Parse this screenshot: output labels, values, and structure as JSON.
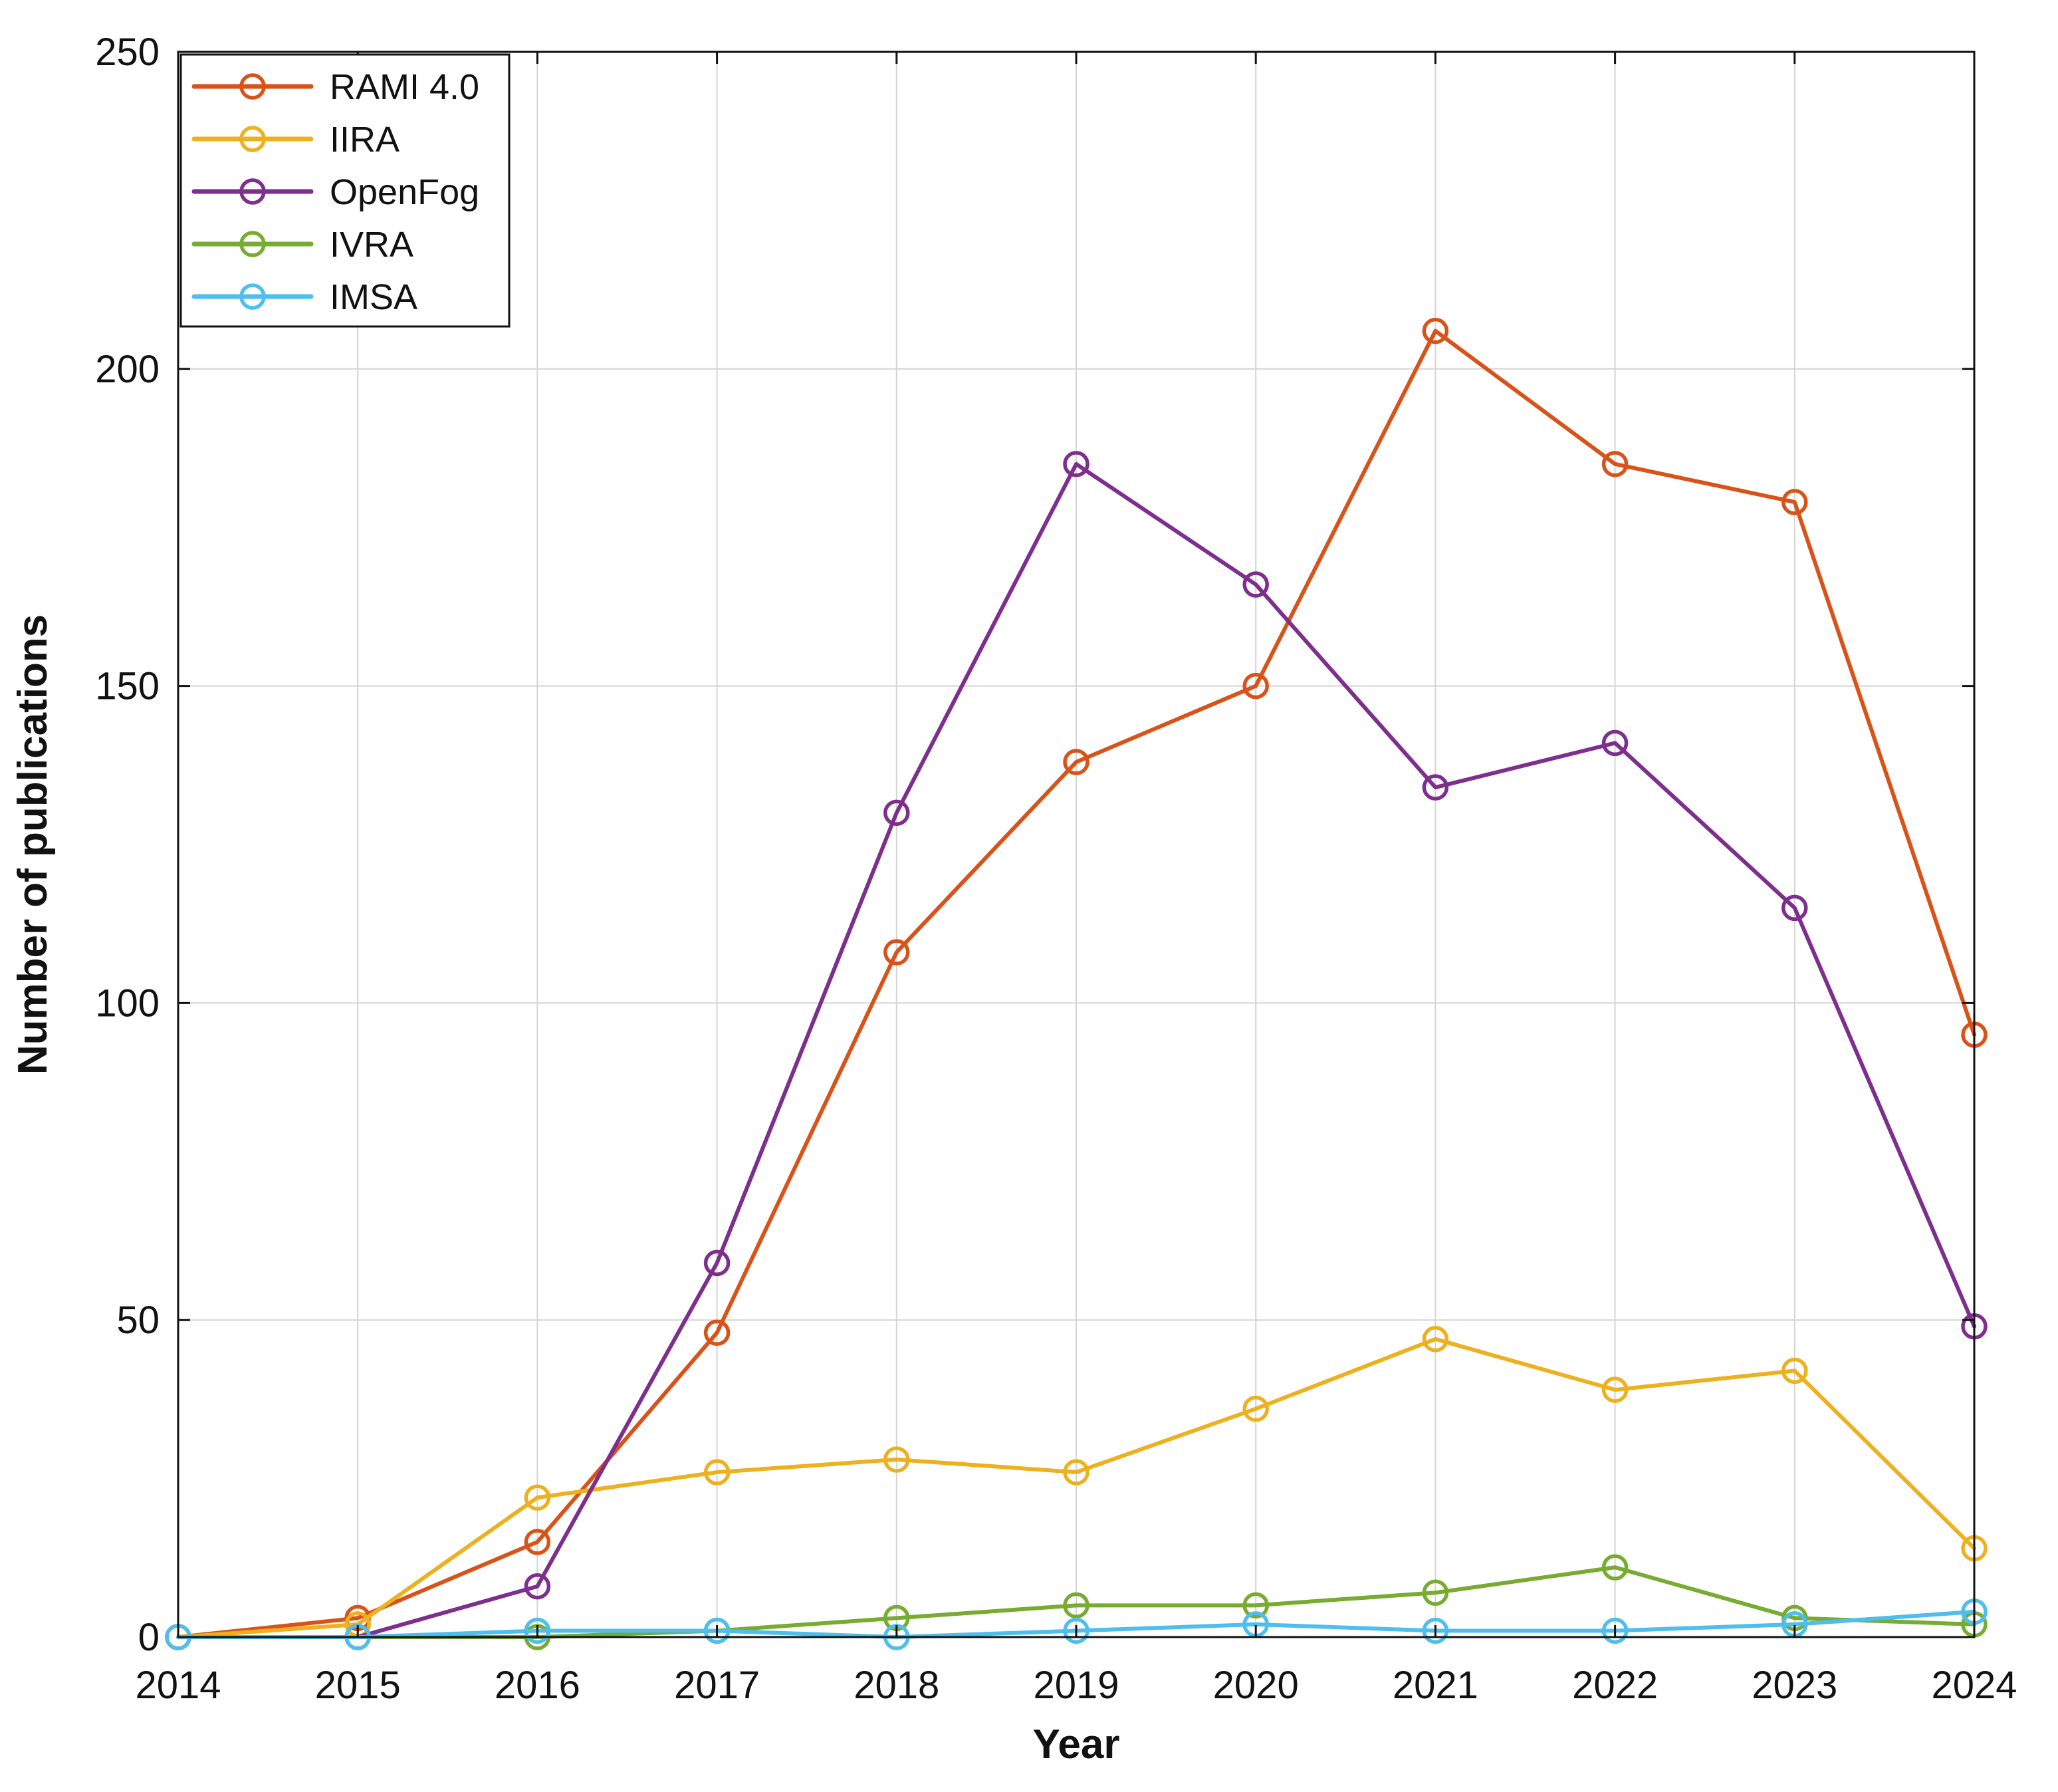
{
  "chart_data": {
    "type": "line",
    "title": "",
    "xlabel": "Year",
    "ylabel": "Number of publications",
    "x": [
      2014,
      2015,
      2016,
      2017,
      2018,
      2019,
      2020,
      2021,
      2022,
      2023,
      2024
    ],
    "xticks": [
      "2014",
      "2015",
      "2016",
      "2017",
      "2018",
      "2019",
      "2020",
      "2021",
      "2022",
      "2023",
      "2024"
    ],
    "yticks": [
      "0",
      "50",
      "100",
      "150",
      "200",
      "250"
    ],
    "xlim": [
      2014,
      2024
    ],
    "ylim": [
      0,
      250
    ],
    "grid": true,
    "legend_position": "top-left",
    "series": [
      {
        "name": "RAMI 4.0",
        "color": "#d95319",
        "values": [
          0,
          3,
          15,
          48,
          108,
          138,
          150,
          206,
          185,
          179,
          95
        ]
      },
      {
        "name": "IIRA",
        "color": "#edb120",
        "values": [
          0,
          2,
          22,
          26,
          28,
          26,
          36,
          47,
          39,
          42,
          14
        ]
      },
      {
        "name": "OpenFog",
        "color": "#7e2f8e",
        "values": [
          0,
          0,
          8,
          59,
          130,
          185,
          166,
          134,
          141,
          115,
          49
        ]
      },
      {
        "name": "IVRA",
        "color": "#77ac30",
        "values": [
          0,
          0,
          0,
          1,
          3,
          5,
          5,
          7,
          11,
          3,
          2
        ]
      },
      {
        "name": "IMSA",
        "color": "#4dbeee",
        "values": [
          0,
          0,
          1,
          1,
          0,
          1,
          2,
          1,
          1,
          2,
          4
        ]
      }
    ]
  }
}
